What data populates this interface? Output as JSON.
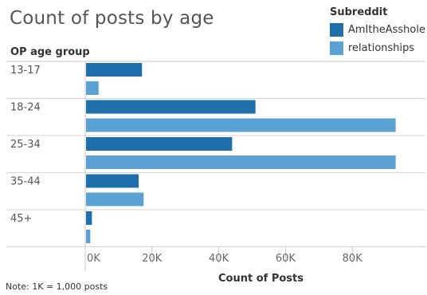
{
  "title": "Count of posts by age",
  "legend": {
    "title": "Subreddit",
    "items": [
      {
        "label": "AmItheAsshole",
        "color": "#1f6fad"
      },
      {
        "label": "relationships",
        "color": "#5aa2d3"
      }
    ]
  },
  "row_header": "OP age group",
  "note": "Note: 1K = 1,000 posts",
  "chart_data": {
    "type": "bar",
    "orientation": "horizontal",
    "categories": [
      "13-17",
      "18-24",
      "25-34",
      "35-44",
      "45+"
    ],
    "series": [
      {
        "name": "AmItheAsshole",
        "color": "#1f6fad",
        "values": [
          17000,
          51000,
          44000,
          16000,
          2000
        ]
      },
      {
        "name": "relationships",
        "color": "#5aa2d3",
        "values": [
          4000,
          93000,
          93000,
          17500,
          1500
        ]
      }
    ],
    "xlabel": "Count of Posts",
    "xticks": [
      0,
      20000,
      40000,
      60000,
      80000
    ],
    "xtick_labels": [
      "0K",
      "20K",
      "40K",
      "60K",
      "80K"
    ],
    "xlim": [
      0,
      100000
    ],
    "grid": false
  }
}
